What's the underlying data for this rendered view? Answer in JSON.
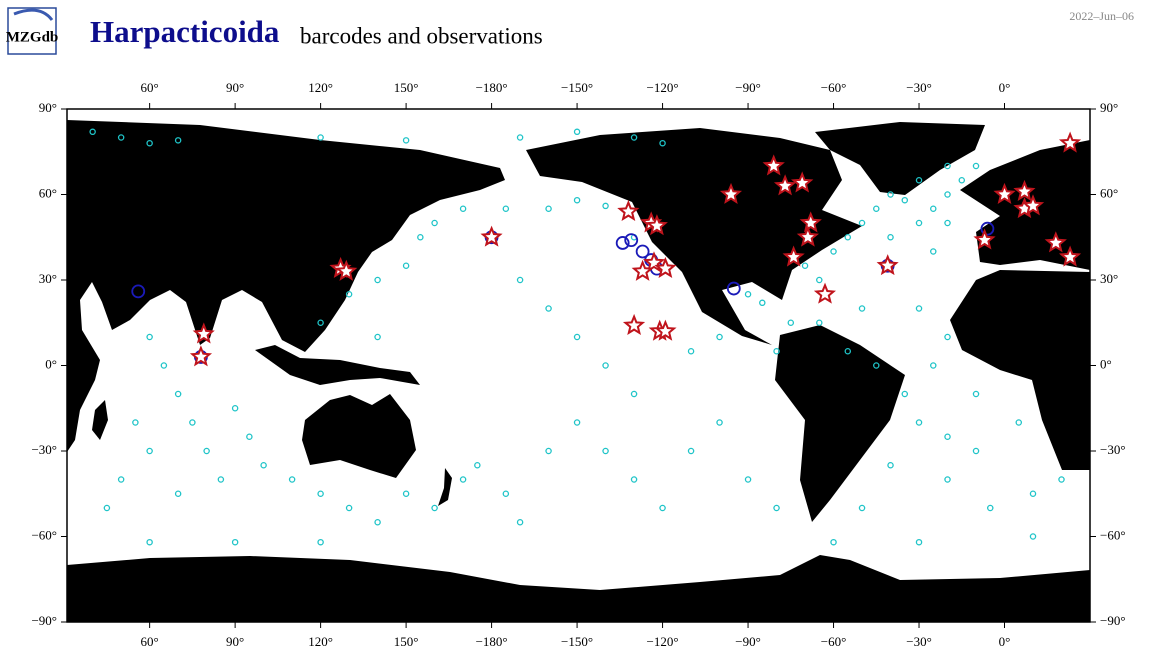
{
  "map": {
    "logo": "MZGdb",
    "title": "Harpacticoida",
    "subtitle": "barcodes and observations",
    "date": "2022–Jun–06",
    "xlim": [
      31,
      390
    ],
    "ylim": [
      -90,
      90
    ],
    "xticks": [
      {
        "value": 60,
        "label": "60°"
      },
      {
        "value": 90,
        "label": "90°"
      },
      {
        "value": 120,
        "label": "120°"
      },
      {
        "value": 150,
        "label": "150°"
      },
      {
        "value": -180,
        "label": "−180°"
      },
      {
        "value": -150,
        "label": "−150°"
      },
      {
        "value": -120,
        "label": "−120°"
      },
      {
        "value": -90,
        "label": "−90°"
      },
      {
        "value": -60,
        "label": "−60°"
      },
      {
        "value": -30,
        "label": "−30°"
      },
      {
        "value": 0,
        "label": "0°"
      }
    ],
    "yticks": [
      {
        "value": 90,
        "label": "90°"
      },
      {
        "value": 60,
        "label": "60°"
      },
      {
        "value": 30,
        "label": "30°"
      },
      {
        "value": 0,
        "label": "0°"
      },
      {
        "value": -30,
        "label": "−30°"
      },
      {
        "value": -60,
        "label": "−60°"
      },
      {
        "value": -90,
        "label": "−90°"
      }
    ],
    "dots": [
      [
        40,
        82
      ],
      [
        50,
        80
      ],
      [
        60,
        78
      ],
      [
        70,
        79
      ],
      [
        120,
        80
      ],
      [
        150,
        79
      ],
      [
        -170,
        80
      ],
      [
        -150,
        82
      ],
      [
        -130,
        80
      ],
      [
        -120,
        78
      ],
      [
        -20,
        70
      ],
      [
        -30,
        65
      ],
      [
        -20,
        60
      ],
      [
        -35,
        58
      ],
      [
        -25,
        55
      ],
      [
        -40,
        60
      ],
      [
        -15,
        65
      ],
      [
        -45,
        55
      ],
      [
        -30,
        50
      ],
      [
        -10,
        70
      ],
      [
        -50,
        50
      ],
      [
        -55,
        45
      ],
      [
        -40,
        45
      ],
      [
        -20,
        50
      ],
      [
        -25,
        40
      ],
      [
        -60,
        40
      ],
      [
        -70,
        35
      ],
      [
        -65,
        30
      ],
      [
        -50,
        20
      ],
      [
        -30,
        20
      ],
      [
        -20,
        10
      ],
      [
        -25,
        0
      ],
      [
        -10,
        -10
      ],
      [
        -30,
        -20
      ],
      [
        -40,
        -35
      ],
      [
        -20,
        -40
      ],
      [
        -5,
        -50
      ],
      [
        10,
        -45
      ],
      [
        20,
        -40
      ],
      [
        -50,
        -50
      ],
      [
        60,
        10
      ],
      [
        65,
        0
      ],
      [
        70,
        -10
      ],
      [
        75,
        -20
      ],
      [
        80,
        -30
      ],
      [
        85,
        -40
      ],
      [
        90,
        -15
      ],
      [
        95,
        -25
      ],
      [
        100,
        -35
      ],
      [
        60,
        -30
      ],
      [
        50,
        -40
      ],
      [
        55,
        -20
      ],
      [
        45,
        -50
      ],
      [
        70,
        -45
      ],
      [
        110,
        -40
      ],
      [
        120,
        -45
      ],
      [
        130,
        -50
      ],
      [
        140,
        -55
      ],
      [
        150,
        -45
      ],
      [
        160,
        -50
      ],
      [
        170,
        -40
      ],
      [
        175,
        -35
      ],
      [
        -175,
        -45
      ],
      [
        -170,
        -55
      ],
      [
        -160,
        -30
      ],
      [
        -150,
        -20
      ],
      [
        -140,
        -30
      ],
      [
        -130,
        -40
      ],
      [
        -120,
        -50
      ],
      [
        -110,
        -30
      ],
      [
        -100,
        -20
      ],
      [
        -90,
        -40
      ],
      [
        -80,
        -50
      ],
      [
        -150,
        10
      ],
      [
        -140,
        0
      ],
      [
        -130,
        -10
      ],
      [
        -110,
        5
      ],
      [
        -100,
        10
      ],
      [
        -160,
        20
      ],
      [
        -170,
        30
      ],
      [
        155,
        45
      ],
      [
        160,
        50
      ],
      [
        170,
        55
      ],
      [
        -175,
        55
      ],
      [
        -160,
        55
      ],
      [
        -150,
        58
      ],
      [
        -140,
        56
      ],
      [
        -130,
        45
      ],
      [
        140,
        30
      ],
      [
        150,
        35
      ],
      [
        130,
        25
      ],
      [
        120,
        15
      ],
      [
        140,
        10
      ],
      [
        -90,
        25
      ],
      [
        -85,
        22
      ],
      [
        -75,
        15
      ],
      [
        -65,
        15
      ],
      [
        -80,
        5
      ],
      [
        -55,
        5
      ],
      [
        -45,
        0
      ],
      [
        -35,
        -10
      ],
      [
        -20,
        -25
      ],
      [
        -10,
        -30
      ],
      [
        5,
        -20
      ],
      [
        10,
        -60
      ],
      [
        -30,
        -62
      ],
      [
        -60,
        -62
      ],
      [
        60,
        -62
      ],
      [
        90,
        -62
      ],
      [
        120,
        -62
      ]
    ],
    "stars": [
      [
        79,
        11
      ],
      [
        78,
        3
      ],
      [
        127,
        34
      ],
      [
        129,
        33
      ],
      [
        -132,
        54
      ],
      [
        -124,
        50
      ],
      [
        -122,
        49
      ],
      [
        -123,
        36
      ],
      [
        -119,
        34
      ],
      [
        -127,
        33
      ],
      [
        -130,
        14
      ],
      [
        -121,
        12
      ],
      [
        -119,
        12
      ],
      [
        -96,
        60
      ],
      [
        -81,
        70
      ],
      [
        -77,
        63
      ],
      [
        -71,
        64
      ],
      [
        -68,
        50
      ],
      [
        -69,
        45
      ],
      [
        -74,
        38
      ],
      [
        -63,
        25
      ],
      [
        0,
        60
      ],
      [
        7,
        61
      ],
      [
        7,
        55
      ],
      [
        10,
        56
      ],
      [
        -7,
        44
      ],
      [
        18,
        43
      ],
      [
        23,
        38
      ],
      [
        23,
        78
      ],
      [
        -180,
        45
      ],
      [
        -41,
        35
      ]
    ],
    "circles": [
      [
        56,
        26
      ],
      [
        -134,
        43
      ],
      [
        -131,
        44
      ],
      [
        -127,
        40
      ],
      [
        -124,
        37
      ],
      [
        -122,
        34
      ],
      [
        -95,
        27
      ],
      [
        -6,
        48
      ],
      [
        -180,
        45
      ],
      [
        -41,
        35
      ],
      [
        78,
        3
      ]
    ]
  }
}
